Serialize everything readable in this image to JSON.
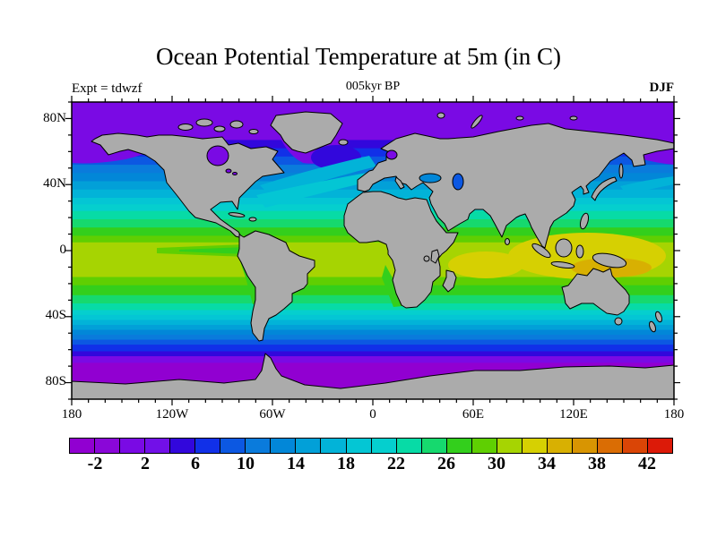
{
  "title": "Ocean Potential Temperature at 5m (in C)",
  "header": {
    "experiment": "Expt = tdwzf",
    "time": "005kyr BP",
    "season": "DJF"
  },
  "axes": {
    "x_ticks": [
      "180",
      "120W",
      "60W",
      "0",
      "60E",
      "120E",
      "180"
    ],
    "y_ticks": [
      "80N",
      "40N",
      "0",
      "40S",
      "80S"
    ],
    "x_range_deg": [
      -180,
      180
    ],
    "y_range_deg": [
      -90,
      90
    ],
    "minor_tick_interval_deg": 10
  },
  "colorbar": {
    "labels": [
      "-2",
      "2",
      "6",
      "10",
      "14",
      "18",
      "22",
      "26",
      "30",
      "34",
      "38",
      "42"
    ],
    "min_value": -4,
    "max_value": 44,
    "interval": 2,
    "units": "C",
    "colors": [
      "#9100D1",
      "#8A07D8",
      "#7A0AE4",
      "#7210E8",
      "#3207DC",
      "#1130E8",
      "#0C58E2",
      "#0A7BDC",
      "#0287D8",
      "#02A0D8",
      "#02B3D8",
      "#04C6D4",
      "#05CFCE",
      "#07DBA6",
      "#16D96E",
      "#33CF1C",
      "#5FCF02",
      "#A6D402",
      "#D6D002",
      "#D8B002",
      "#D89502",
      "#DA6D04",
      "#DA4506",
      "#DC1A08"
    ]
  },
  "chart_data": {
    "type": "heatmap",
    "variable": "Ocean Potential Temperature",
    "depth": "5m",
    "units": "C",
    "season": "DJF",
    "time": "005kyr BP",
    "experiment": "tdwzf",
    "projection": "equirectangular lat-lon world map",
    "land_color": "#ABABAB",
    "coastline_color": "#000000",
    "contour_interval": 2,
    "value_range": [
      -4,
      44
    ],
    "zonal_bands": [
      {
        "lat_from": 90,
        "lat_to": 67,
        "color": "#7A0AE4"
      },
      {
        "lat_from": 67,
        "lat_to": 62,
        "color": "#3207DC"
      },
      {
        "lat_from": 62,
        "lat_to": 57,
        "color": "#1130E8"
      },
      {
        "lat_from": 57,
        "lat_to": 52,
        "color": "#0C58E2"
      },
      {
        "lat_from": 52,
        "lat_to": 47,
        "color": "#0A7BDC"
      },
      {
        "lat_from": 47,
        "lat_to": 42,
        "color": "#0287D8"
      },
      {
        "lat_from": 42,
        "lat_to": 37,
        "color": "#02A0D8"
      },
      {
        "lat_from": 37,
        "lat_to": 32,
        "color": "#02B3D8"
      },
      {
        "lat_from": 32,
        "lat_to": 28,
        "color": "#04C6D4"
      },
      {
        "lat_from": 28,
        "lat_to": 24,
        "color": "#05CFCE"
      },
      {
        "lat_from": 24,
        "lat_to": 19,
        "color": "#07DBA6"
      },
      {
        "lat_from": 19,
        "lat_to": 14,
        "color": "#16D96E"
      },
      {
        "lat_from": 14,
        "lat_to": 9,
        "color": "#33CF1C"
      },
      {
        "lat_from": 9,
        "lat_to": 5,
        "color": "#5FCF02"
      },
      {
        "lat_from": 5,
        "lat_to": -16,
        "color": "#A6D402"
      },
      {
        "lat_from": -16,
        "lat_to": -21,
        "color": "#5FCF02"
      },
      {
        "lat_from": -21,
        "lat_to": -27,
        "color": "#33CF1C"
      },
      {
        "lat_from": -27,
        "lat_to": -32,
        "color": "#16D96E"
      },
      {
        "lat_from": -32,
        "lat_to": -36,
        "color": "#07DBA6"
      },
      {
        "lat_from": -36,
        "lat_to": -39,
        "color": "#05CFCE"
      },
      {
        "lat_from": -39,
        "lat_to": -42,
        "color": "#04C6D4"
      },
      {
        "lat_from": -42,
        "lat_to": -45,
        "color": "#02B3D8"
      },
      {
        "lat_from": -45,
        "lat_to": -48,
        "color": "#02A0D8"
      },
      {
        "lat_from": -48,
        "lat_to": -51,
        "color": "#0287D8"
      },
      {
        "lat_from": -51,
        "lat_to": -54,
        "color": "#0A7BDC"
      },
      {
        "lat_from": -54,
        "lat_to": -57,
        "color": "#0C58E2"
      },
      {
        "lat_from": -57,
        "lat_to": -61,
        "color": "#1130E8"
      },
      {
        "lat_from": -61,
        "lat_to": -64,
        "color": "#3207DC"
      },
      {
        "lat_from": -64,
        "lat_to": -68,
        "color": "#7A0AE4"
      },
      {
        "lat_from": -68,
        "lat_to": -90,
        "color": "#9100D1"
      }
    ],
    "regional_features": [
      {
        "name": "bering-okhotsk-cold-pool",
        "color": "#7A0AE4"
      },
      {
        "name": "labrador-baffin-cold-pool",
        "color": "#7A0AE4"
      },
      {
        "name": "greenland-sea-cold",
        "color": "#3207DC"
      },
      {
        "name": "gulf-stream-warm-tongue",
        "color": "#02B3D8"
      },
      {
        "name": "kuroshio-warm-tongue",
        "color": "#02B3D8"
      },
      {
        "name": "west-pacific-warm-pool",
        "color": "#D6D002"
      },
      {
        "name": "warm-pool-core",
        "color": "#D8B002"
      },
      {
        "name": "indian-ocean-warm-pool",
        "color": "#D6D002"
      },
      {
        "name": "equatorial-pacific-cold-tongue",
        "color": "#33CF1C"
      },
      {
        "name": "peru-upwelling",
        "color": "#33CF1C"
      },
      {
        "name": "benguela-upwelling",
        "color": "#33CF1C"
      }
    ]
  }
}
